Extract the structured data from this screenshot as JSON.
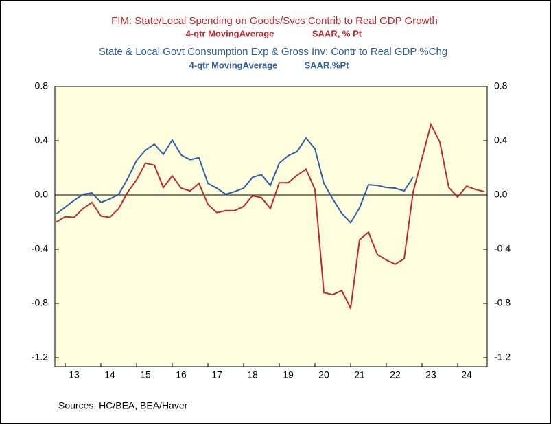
{
  "chart_data": {
    "type": "line",
    "title": "FIM: State/Local Spending on Goods/Svcs Contrib to Real GDP Growth",
    "subtitle": [
      "4-qtr MovingAverage",
      "SAAR, % Pt"
    ],
    "title2": "State & Local Govt Consumption Exp & Gross Inv: Contr to Real GDP %Chg",
    "subtitle2": [
      "4-qtr MovingAverage",
      "SAAR,%Pt"
    ],
    "source": "Sources:  HC/BEA, BEA/Haver",
    "x": [
      12.75,
      13,
      13.25,
      13.5,
      13.75,
      14,
      14.25,
      14.5,
      14.75,
      15,
      15.25,
      15.5,
      15.75,
      16,
      16.25,
      16.5,
      16.75,
      17,
      17.25,
      17.5,
      17.75,
      18,
      18.25,
      18.5,
      18.75,
      19,
      19.25,
      19.5,
      19.75,
      20,
      20.25,
      20.5,
      20.75,
      21,
      21.25,
      21.5,
      21.75,
      22,
      22.25,
      22.5,
      22.75,
      23,
      23.25,
      23.5,
      23.75,
      24,
      24.25,
      24.5,
      24.75
    ],
    "xlim": [
      12.75,
      24.75
    ],
    "xticks": [
      13,
      14,
      15,
      16,
      17,
      18,
      19,
      20,
      21,
      22,
      23,
      24
    ],
    "ylim": [
      -1.2,
      0.8
    ],
    "yticks": [
      -1.2,
      -0.8,
      -0.4,
      {
        "value": 0,
        "label": "0.0"
      },
      0.4,
      0.8
    ],
    "series": [
      {
        "name": "FIM: State/Local Spending on Goods/Svcs Contrib to Real GDP Growth",
        "color": "#c0282b",
        "values": [
          -0.2,
          -0.16,
          -0.165,
          -0.1,
          -0.055,
          -0.155,
          -0.165,
          -0.1,
          0.02,
          0.11,
          0.235,
          0.22,
          0.055,
          0.14,
          0.05,
          0.03,
          0.085,
          -0.07,
          -0.13,
          -0.115,
          -0.115,
          -0.085,
          -0.005,
          -0.02,
          -0.1,
          0.09,
          0.09,
          0.145,
          0.19,
          0.04,
          -0.72,
          -0.735,
          -0.705,
          -0.835,
          -0.33,
          -0.275,
          -0.44,
          -0.48,
          -0.51,
          -0.47,
          0.02,
          0.27,
          0.52,
          0.39,
          0.055,
          -0.015,
          0.065,
          0.04,
          0.025
        ]
      },
      {
        "name": "State & Local Govt Consumption Exp & Gross Inv: Contr to Real GDP %Chg",
        "color": "#2e5fa0",
        "values": [
          -0.14,
          -0.09,
          -0.04,
          0.005,
          0.015,
          -0.055,
          -0.03,
          0.005,
          0.12,
          0.255,
          0.33,
          0.375,
          0.3,
          0.405,
          0.295,
          0.26,
          0.275,
          0.085,
          0.05,
          0.005,
          0.025,
          0.05,
          0.13,
          0.15,
          0.07,
          0.235,
          0.29,
          0.32,
          0.42,
          0.34,
          0.085,
          -0.03,
          -0.135,
          -0.205,
          -0.095,
          0.075,
          0.07,
          0.055,
          0.05,
          0.03,
          0.13,
          null,
          null,
          null,
          null,
          null,
          null,
          null,
          null
        ]
      }
    ]
  }
}
